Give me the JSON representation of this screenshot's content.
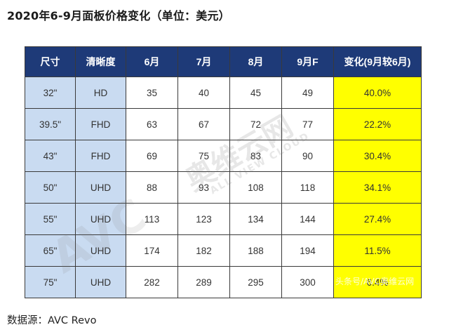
{
  "title": "2020年6-9月面板价格变化（单位：美元）",
  "table": {
    "headers": [
      "尺寸",
      "清晰度",
      "6月",
      "7月",
      "8月",
      "9月F",
      "变化(9月较6月)"
    ],
    "rows": [
      [
        "32\"",
        "HD",
        "35",
        "40",
        "45",
        "49",
        "40.0%"
      ],
      [
        "39.5\"",
        "FHD",
        "63",
        "67",
        "72",
        "77",
        "22.2%"
      ],
      [
        "43\"",
        "FHD",
        "69",
        "75",
        "83",
        "90",
        "30.4%"
      ],
      [
        "50\"",
        "UHD",
        "88",
        "93",
        "108",
        "118",
        "34.1%"
      ],
      [
        "55\"",
        "UHD",
        "113",
        "123",
        "134",
        "144",
        "27.4%"
      ],
      [
        "65\"",
        "UHD",
        "174",
        "182",
        "188",
        "194",
        "11.5%"
      ],
      [
        "75\"",
        "UHD",
        "282",
        "289",
        "295",
        "300",
        "6.4%"
      ]
    ]
  },
  "watermark": {
    "cn": "奥维云网",
    "en": "ALL VIEW CLOUD",
    "logo": "AVC",
    "corner": "头条号/AVC奥维云网"
  },
  "footer": "数据源：AVC Revo",
  "colors": {
    "header_bg": "#1e3a78",
    "size_col_bg": "#c9dbf1",
    "change_col_bg": "#ffff00"
  }
}
